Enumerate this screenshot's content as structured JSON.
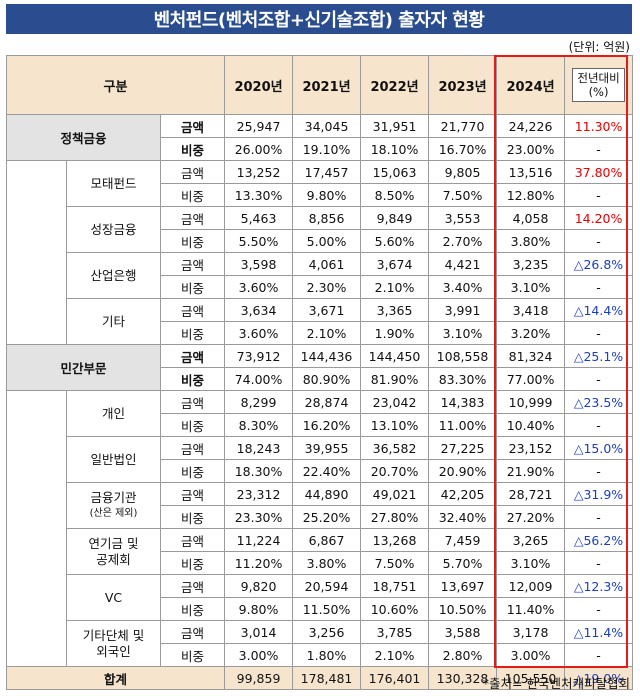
{
  "title": "벤처펀드(벤처조합+신기술조합) 출자자 현황",
  "unit": "(단위: 억원)",
  "source": "*출처= 한국벤처캐피탈협회",
  "colors": {
    "header_bg": "#f7e4cd",
    "title_bg": "#2a4d8f",
    "highlight_border": "#e21b1b",
    "red": "#e30000",
    "blue": "#1b3fbf"
  },
  "header": {
    "category": "구분",
    "years": [
      "2020년",
      "2021년",
      "2022년",
      "2023년",
      "2024년"
    ],
    "yoy_line1": "전년대비",
    "yoy_line2": "(%)"
  },
  "metric_amount": "금액",
  "metric_share": "비중",
  "sections": [
    {
      "label": "정책금융",
      "amount": [
        "25,947",
        "34,045",
        "31,951",
        "21,770",
        "24,226",
        "11.30%"
      ],
      "share": [
        "26.00%",
        "19.10%",
        "18.10%",
        "16.70%",
        "23.00%",
        "-"
      ],
      "subs": [
        {
          "label": "모태펀드",
          "amount": [
            "13,252",
            "17,457",
            "15,063",
            "9,805",
            "13,516",
            "37.80%"
          ],
          "share": [
            "13.30%",
            "9.80%",
            "8.50%",
            "7.50%",
            "12.80%",
            "-"
          ]
        },
        {
          "label": "성장금융",
          "amount": [
            "5,463",
            "8,856",
            "9,849",
            "3,553",
            "4,058",
            "14.20%"
          ],
          "share": [
            "5.50%",
            "5.00%",
            "5.60%",
            "2.70%",
            "3.80%",
            "-"
          ]
        },
        {
          "label": "산업은행",
          "amount": [
            "3,598",
            "4,061",
            "3,674",
            "4,421",
            "3,235",
            "△26.8%"
          ],
          "share": [
            "3.60%",
            "2.30%",
            "2.10%",
            "3.40%",
            "3.10%",
            "-"
          ]
        },
        {
          "label": "기타",
          "amount": [
            "3,634",
            "3,671",
            "3,365",
            "3,991",
            "3,418",
            "△14.4%"
          ],
          "share": [
            "3.60%",
            "2.10%",
            "1.90%",
            "3.10%",
            "3.20%",
            "-"
          ]
        }
      ]
    },
    {
      "label": "민간부문",
      "amount": [
        "73,912",
        "144,436",
        "144,450",
        "108,558",
        "81,324",
        "△25.1%"
      ],
      "share": [
        "74.00%",
        "80.90%",
        "81.90%",
        "83.30%",
        "77.00%",
        "-"
      ],
      "subs": [
        {
          "label": "개인",
          "amount": [
            "8,299",
            "28,874",
            "23,042",
            "14,383",
            "10,999",
            "△23.5%"
          ],
          "share": [
            "8.30%",
            "16.20%",
            "13.10%",
            "11.00%",
            "10.40%",
            "-"
          ]
        },
        {
          "label": "일반법인",
          "amount": [
            "18,243",
            "39,955",
            "36,582",
            "27,225",
            "23,152",
            "△15.0%"
          ],
          "share": [
            "18.30%",
            "22.40%",
            "20.70%",
            "20.90%",
            "21.90%",
            "-"
          ]
        },
        {
          "label": "금융기관",
          "label2": "(산은 제외)",
          "amount": [
            "23,312",
            "44,890",
            "49,021",
            "42,205",
            "28,721",
            "△31.9%"
          ],
          "share": [
            "23.30%",
            "25.20%",
            "27.80%",
            "32.40%",
            "27.20%",
            "-"
          ]
        },
        {
          "label": "연기금 및",
          "label2": "공제회",
          "amount": [
            "11,224",
            "6,867",
            "13,268",
            "7,459",
            "3,265",
            "△56.2%"
          ],
          "share": [
            "11.20%",
            "3.80%",
            "7.50%",
            "5.70%",
            "3.10%",
            "-"
          ]
        },
        {
          "label": "VC",
          "amount": [
            "9,820",
            "20,594",
            "18,751",
            "13,697",
            "12,009",
            "△12.3%"
          ],
          "share": [
            "9.80%",
            "11.50%",
            "10.60%",
            "10.50%",
            "11.40%",
            "-"
          ]
        },
        {
          "label": "기타단체 및",
          "label2": "외국인",
          "amount": [
            "3,014",
            "3,256",
            "3,785",
            "3,588",
            "3,178",
            "△11.4%"
          ],
          "share": [
            "3.00%",
            "1.80%",
            "2.10%",
            "2.80%",
            "3.00%",
            "-"
          ]
        }
      ]
    }
  ],
  "total": {
    "label": "합계",
    "values": [
      "99,859",
      "178,481",
      "176,401",
      "130,328",
      "105,550",
      "△19.0%"
    ]
  }
}
